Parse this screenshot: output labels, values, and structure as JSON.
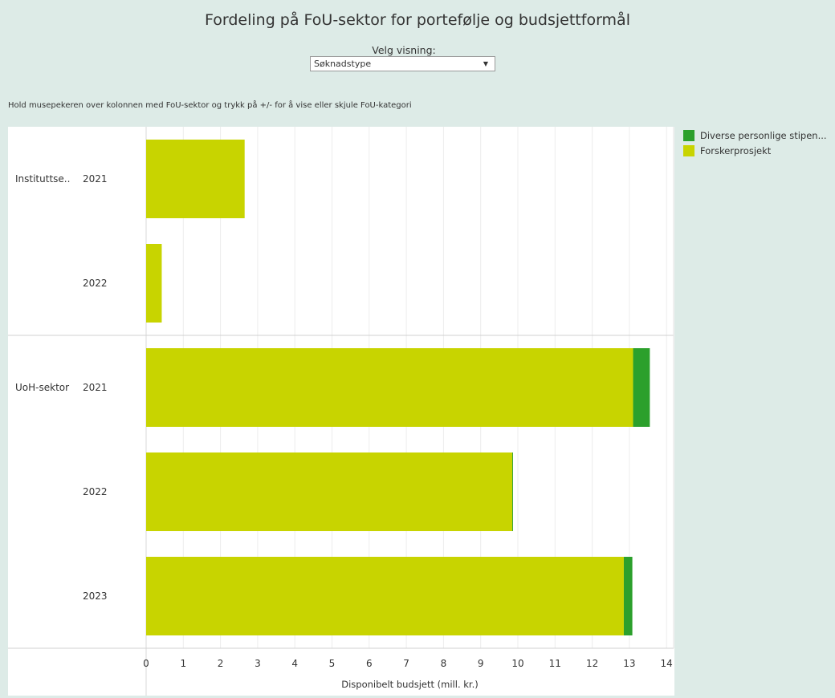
{
  "title": "Fordeling på FoU-sektor for portefølje og budsjettformål",
  "control": {
    "label": "Velg visning:",
    "selected": "Søknadstype"
  },
  "hint": "Hold musepekeren over kolonnen med FoU-sektor  og trykk på +/- for å vise eller skjule FoU-kategori",
  "legend": [
    {
      "label": "Diverse personlige stipen...",
      "color": "#2ca02c"
    },
    {
      "label": "Forskerprosjekt",
      "color": "#c8d400"
    }
  ],
  "chart_data": {
    "type": "bar",
    "orientation": "horizontal",
    "stacked": true,
    "xlabel": "Disponibelt budsjett (mill. kr.)",
    "xlim": [
      0,
      14
    ],
    "xticks": [
      "0",
      "1",
      "2",
      "3",
      "4",
      "5",
      "6",
      "7",
      "8",
      "9",
      "10",
      "11",
      "12",
      "13",
      "14"
    ],
    "grid": true,
    "legend_position": "right",
    "groups": [
      {
        "label": "Instituttse..",
        "years": [
          "2021",
          "2022"
        ]
      },
      {
        "label": "UoH-sektor",
        "years": [
          "2021",
          "2022",
          "2023"
        ]
      }
    ],
    "categories": [
      "Instituttse.. 2021",
      "Instituttse.. 2022",
      "UoH-sektor 2021",
      "UoH-sektor 2022",
      "UoH-sektor 2023"
    ],
    "series": [
      {
        "name": "Forskerprosjekt",
        "color": "#c8d400",
        "values": [
          2.65,
          0.42,
          13.1,
          9.85,
          12.85
        ]
      },
      {
        "name": "Diverse personlige stipen...",
        "color": "#2ca02c",
        "values": [
          0,
          0,
          0.45,
          0.02,
          0.23
        ]
      }
    ]
  }
}
